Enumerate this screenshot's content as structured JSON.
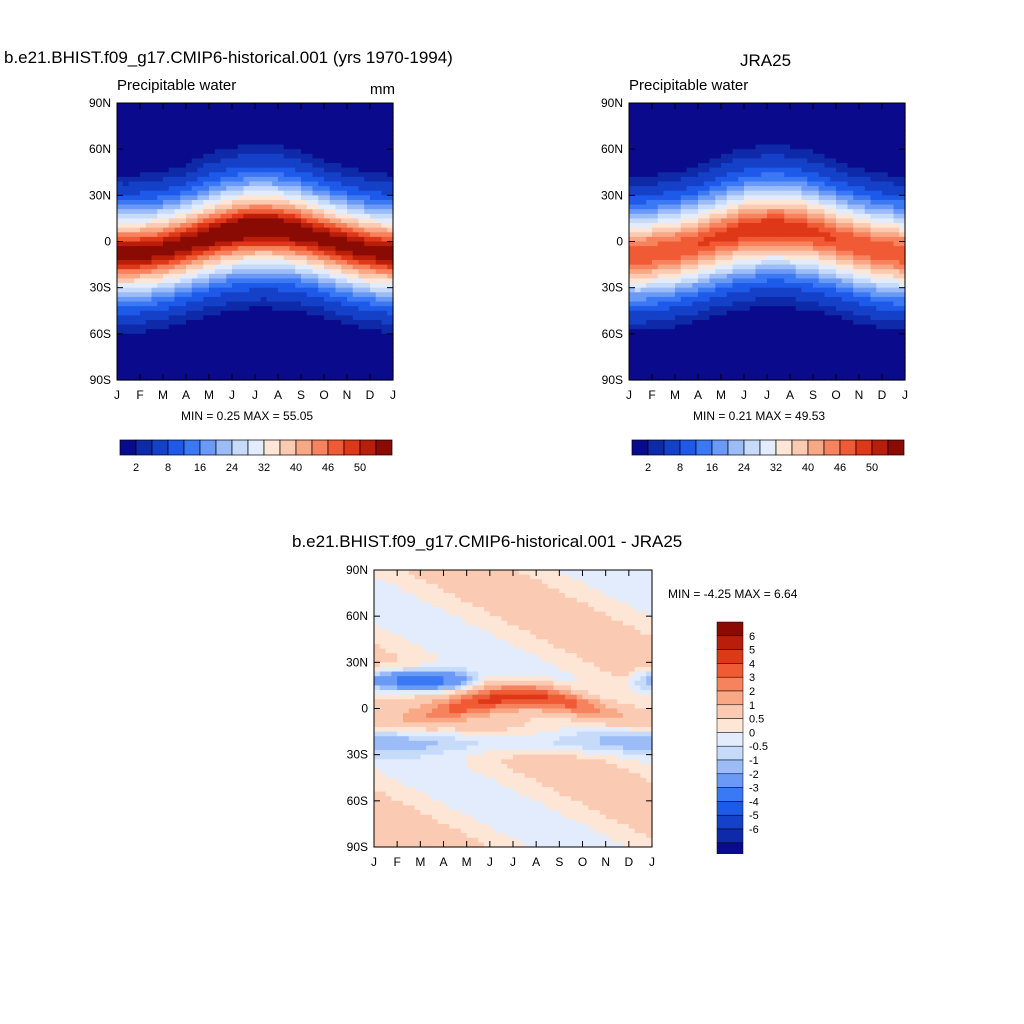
{
  "palette": [
    "#0a0a8c",
    "#0f2aa8",
    "#1540c8",
    "#1e5aea",
    "#3a78f4",
    "#6a9af6",
    "#9cbcf8",
    "#c6dafa",
    "#e2ecfc",
    "#fde6d6",
    "#fbcab2",
    "#f9a886",
    "#f6825e",
    "#f05a34",
    "#de3818",
    "#b81e0a",
    "#8a0a04"
  ],
  "chart_data": [
    {
      "type": "heatmap",
      "id": "model",
      "title": "b.e21.BHIST.f09_g17.CMIP6-historical.001 (yrs 1970-1994)",
      "left_label": "Precipitable water",
      "right_label": "mm",
      "x_ticks": [
        "J",
        "F",
        "M",
        "A",
        "M",
        "J",
        "J",
        "A",
        "S",
        "O",
        "N",
        "D",
        "J"
      ],
      "y_ticks": [
        "90N",
        "60N",
        "30N",
        "0",
        "30S",
        "60S",
        "90S"
      ],
      "min": 0.25,
      "max": 55.05,
      "stats_text": "MIN =   0.25 MAX =  55.05",
      "colorbar_levels": [
        "2",
        "8",
        "16",
        "24",
        "32",
        "40",
        "46",
        "50"
      ]
    },
    {
      "type": "heatmap",
      "id": "obs",
      "title": "JRA25",
      "left_label": "Precipitable water",
      "right_label": "",
      "x_ticks": [
        "J",
        "F",
        "M",
        "A",
        "M",
        "J",
        "J",
        "A",
        "S",
        "O",
        "N",
        "D",
        "J"
      ],
      "y_ticks": [
        "90N",
        "60N",
        "30N",
        "0",
        "30S",
        "60S",
        "90S"
      ],
      "min": 0.21,
      "max": 49.53,
      "stats_text": "MIN =   0.21 MAX =  49.53",
      "colorbar_levels": [
        "2",
        "8",
        "16",
        "24",
        "32",
        "40",
        "46",
        "50"
      ]
    },
    {
      "type": "heatmap",
      "id": "diff",
      "title": "b.e21.BHIST.f09_g17.CMIP6-historical.001 - JRA25",
      "x_ticks": [
        "J",
        "F",
        "M",
        "A",
        "M",
        "J",
        "J",
        "A",
        "S",
        "O",
        "N",
        "D",
        "J"
      ],
      "y_ticks": [
        "90N",
        "60N",
        "30N",
        "0",
        "30S",
        "60S",
        "90S"
      ],
      "min": -4.25,
      "max": 6.64,
      "stats_text": "MIN =  -4.25 MAX =   6.64",
      "colorbar_levels": [
        "6",
        "5",
        "4",
        "3",
        "2",
        "1",
        "0.5",
        "0",
        "-0.5",
        "-1",
        "-2",
        "-3",
        "-4",
        "-5",
        "-6"
      ]
    }
  ]
}
